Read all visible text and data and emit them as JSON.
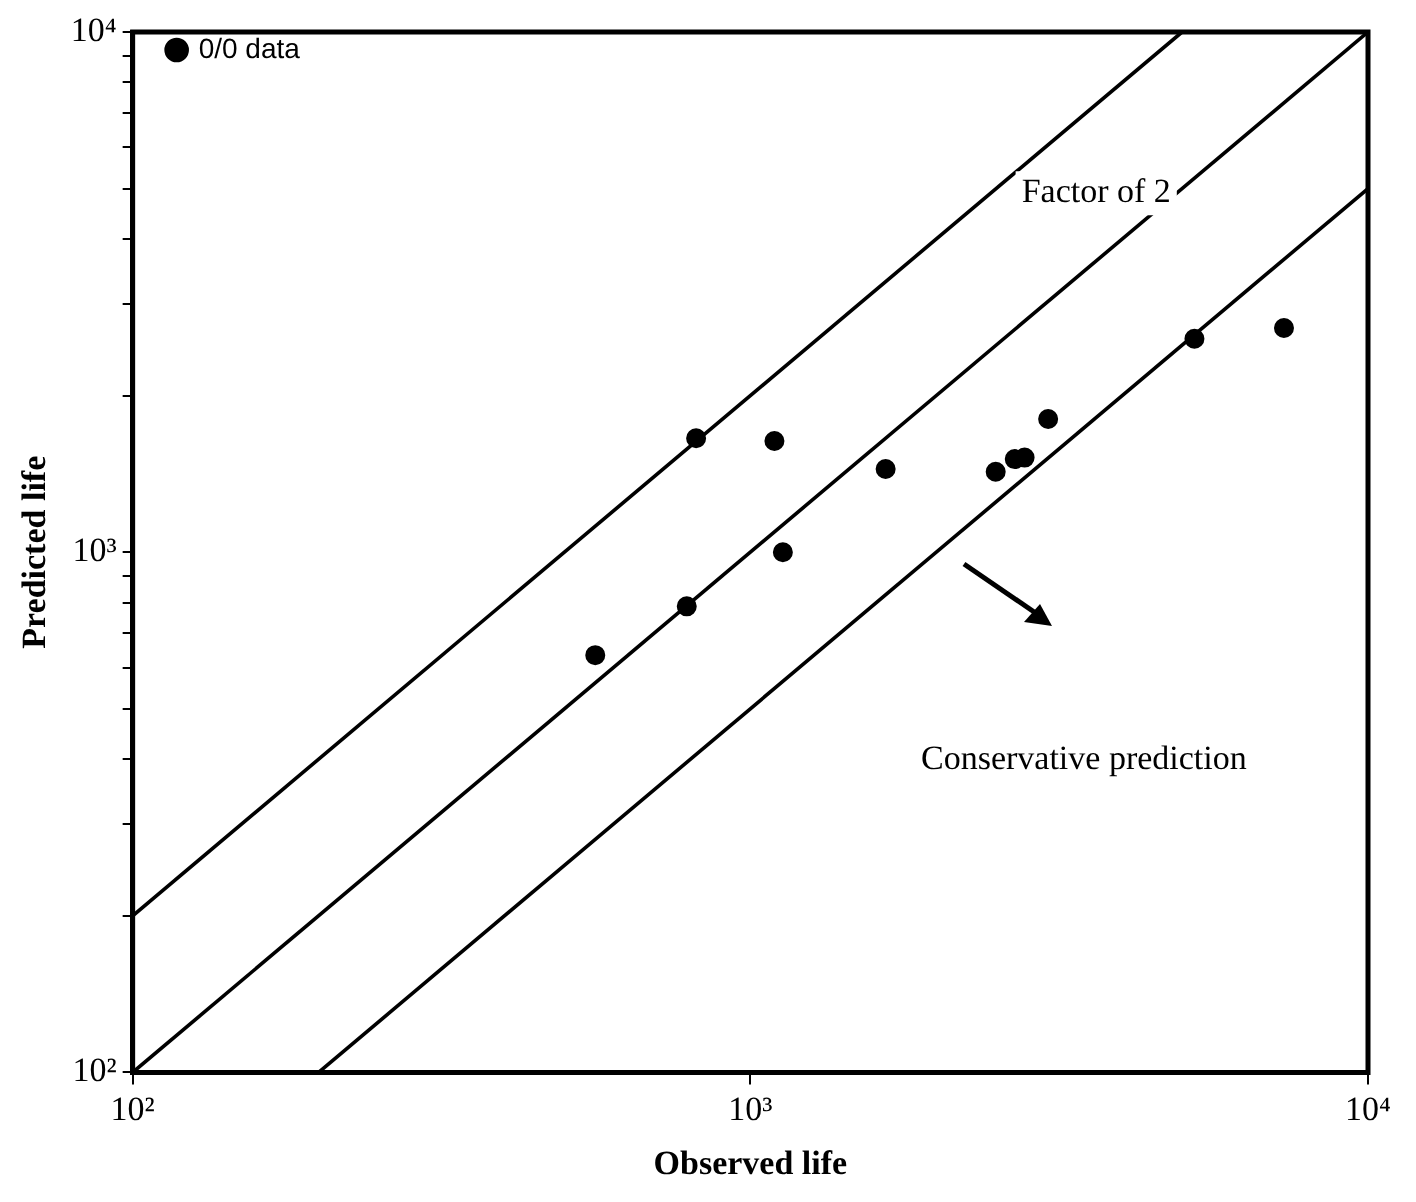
{
  "chart_data": {
    "type": "scatter",
    "xlabel": "Observed life",
    "ylabel": "Predicted life",
    "log": "xy",
    "grid": false,
    "legend": "top left",
    "xlim": [
      100,
      10000
    ],
    "ylim": [
      100,
      10000
    ],
    "xticks": [
      {
        "value": 100,
        "label": "10²"
      },
      {
        "value": 1000,
        "label": "10³"
      },
      {
        "value": 10000,
        "label": "10⁴"
      }
    ],
    "yticks": [
      {
        "value": 100,
        "label": "10²"
      },
      {
        "value": 200,
        "label": null
      },
      {
        "value": 300,
        "label": null
      },
      {
        "value": 400,
        "label": null
      },
      {
        "value": 500,
        "label": null
      },
      {
        "value": 600,
        "label": null
      },
      {
        "value": 700,
        "label": null
      },
      {
        "value": 800,
        "label": null
      },
      {
        "value": 900,
        "label": null
      },
      {
        "value": 1000,
        "label": "10³"
      },
      {
        "value": 2000,
        "label": null
      },
      {
        "value": 3000,
        "label": null
      },
      {
        "value": 4000,
        "label": null
      },
      {
        "value": 5000,
        "label": null
      },
      {
        "value": 6000,
        "label": null
      },
      {
        "value": 7000,
        "label": null
      },
      {
        "value": 8000,
        "label": null
      },
      {
        "value": 9000,
        "label": null
      },
      {
        "value": 10000,
        "label": "10⁴"
      }
    ],
    "series": [
      {
        "name": "0/0 data",
        "color": "#000000",
        "marker": "circle",
        "x": [
          561,
          789,
          817,
          1094,
          1129,
          1656,
          2496,
          2680,
          2780,
          3035,
          5236,
          7311
        ],
        "values": [
          634,
          787,
          1656,
          1636,
          1000,
          1445,
          1428,
          1510,
          1520,
          1803,
          2572,
          2698
        ]
      },
      {
        "type": "line",
        "color": "#000000",
        "marker": "none",
        "line_style": "solid",
        "x": [
          100,
          5000
        ],
        "values": [
          200,
          10000
        ]
      },
      {
        "type": "line",
        "color": "#000000",
        "marker": "none",
        "line_style": "solid",
        "x": [
          100,
          10000
        ],
        "values": [
          100,
          10000
        ]
      },
      {
        "type": "line",
        "color": "#000000",
        "marker": "none",
        "line_style": "solid",
        "x": [
          200,
          10000
        ],
        "values": [
          100,
          5000
        ]
      }
    ],
    "annotations": [
      "Factor of 2",
      "Conservative prediction"
    ]
  }
}
